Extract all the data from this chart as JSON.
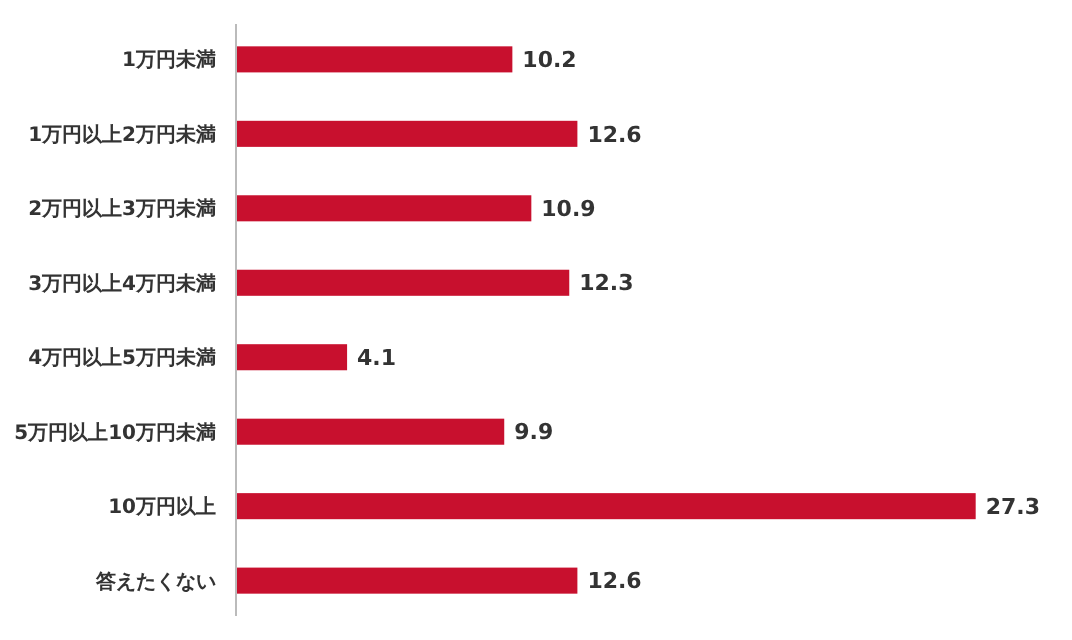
{
  "chart_data": {
    "type": "bar",
    "orientation": "horizontal",
    "categories": [
      "1万円未満",
      "1万円以上2万円未満",
      "2万円以上3万円未満",
      "3万円以上4万円未満",
      "4万円以上5万円未満",
      "5万円以上10万円未満",
      "10万円以上",
      "答えたくない"
    ],
    "values": [
      10.2,
      12.6,
      10.9,
      12.3,
      4.1,
      9.9,
      27.3,
      12.6
    ],
    "color": "#c8102e",
    "data_labels": true
  }
}
